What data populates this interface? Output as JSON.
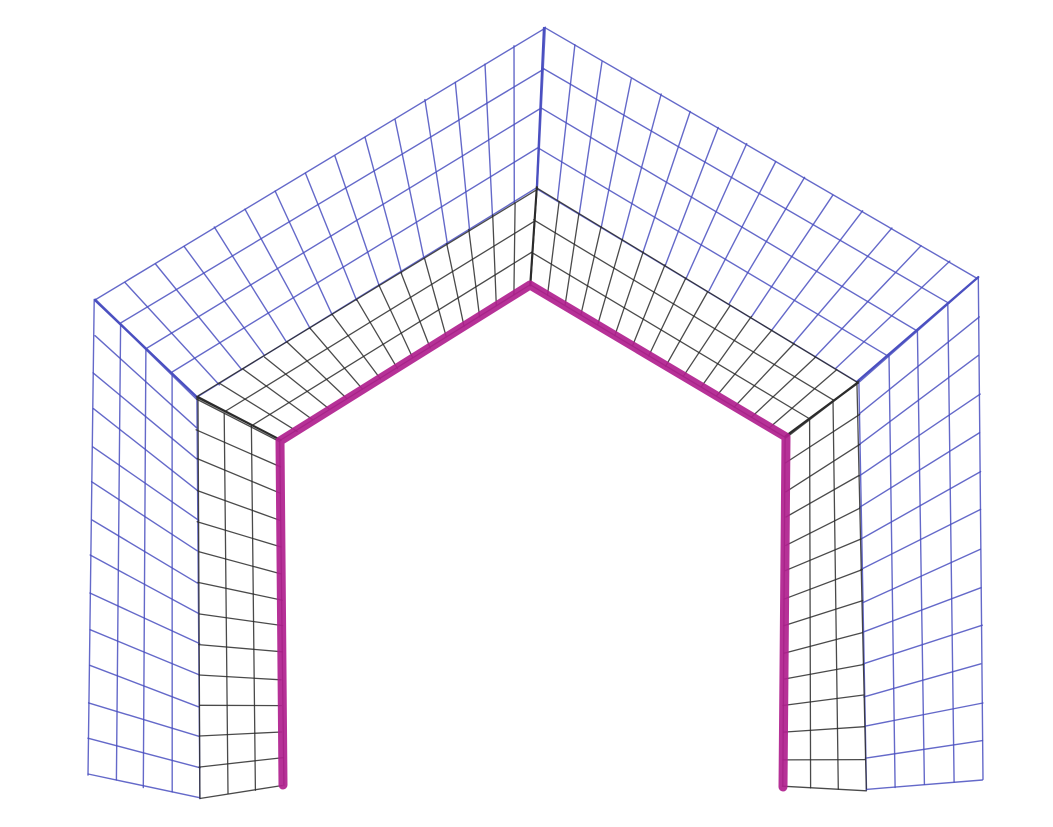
{
  "drawing": {
    "colors": {
      "paper": "#ffffff",
      "outer_grid": "#4a4fc0",
      "inner_grid": "#2b2b2b",
      "arch_outline": "#b0208e"
    },
    "outer_band_cells": 4,
    "inner_band_cells": 3
  }
}
